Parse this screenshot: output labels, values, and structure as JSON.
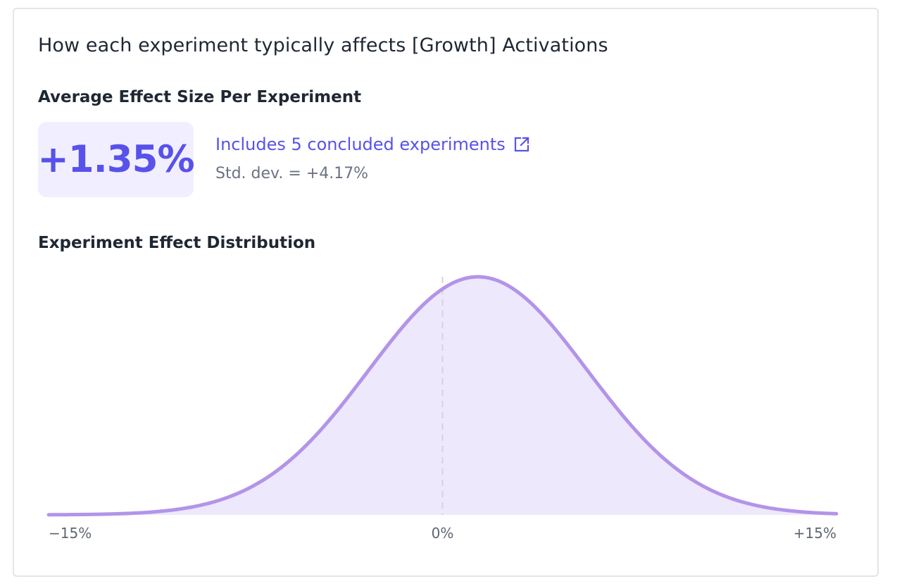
{
  "card": {
    "title": "How each experiment typically affects [Growth] Activations"
  },
  "average": {
    "heading": "Average Effect Size Per Experiment",
    "value": "+1.35%",
    "link_label": "Includes 5 concluded experiments",
    "link_icon": "external-link-icon",
    "stddev_label": "Std. dev. = +4.17%"
  },
  "distribution": {
    "heading": "Experiment Effect Distribution"
  },
  "colors": {
    "accent": "#5852ea",
    "curve": "#b394e8",
    "fill": "#ede8fb",
    "zero_line": "#d4d4d8"
  },
  "chart_data": {
    "type": "area",
    "title": "Experiment Effect Distribution",
    "distribution": "normal",
    "mean": 1.35,
    "std_dev": 4.17,
    "xlim": [
      -15,
      15
    ],
    "x_ticks": [
      {
        "value": -15,
        "label": "−15%"
      },
      {
        "value": 0,
        "label": "0%"
      },
      {
        "value": 15,
        "label": "+15%"
      }
    ],
    "reference_line_x": 0,
    "grid": false,
    "legend": "none"
  }
}
